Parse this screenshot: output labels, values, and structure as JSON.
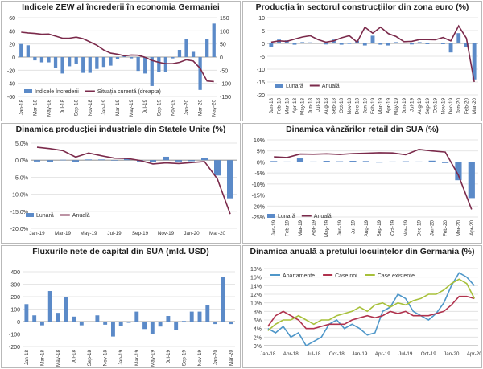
{
  "colors": {
    "bar": "#5b8ac8",
    "wine": "#7b2a4b",
    "teal": "#4f97c9",
    "red": "#b0324d",
    "green": "#a7c03a",
    "grid": "#dedede",
    "axis": "#444444"
  },
  "charts": [
    {
      "id": "zew",
      "title": "Indicele ZEW al încrederii în economia Germaniei",
      "type": "bar-line",
      "ylim": [
        -60,
        60
      ],
      "yticks": [
        -60,
        -40,
        -20,
        0,
        20,
        40,
        60
      ],
      "y2lim": [
        -150,
        150
      ],
      "y2ticks": [
        -150,
        -100,
        -50,
        0,
        50,
        100,
        150
      ],
      "categories": [
        "Jan-18",
        "Feb-18",
        "Mar-18",
        "Apr-18",
        "May-18",
        "Jun-18",
        "Jul-18",
        "Aug-18",
        "Sep-18",
        "Oct-18",
        "Nov-18",
        "Dec-18",
        "Jan-19",
        "Feb-19",
        "Mar-19",
        "Apr-19",
        "May-19",
        "Jun-19",
        "Jul-19",
        "Aug-19",
        "Sep-19",
        "Oct-19",
        "Nov-19",
        "Dec-19",
        "Jan-20",
        "Feb-20",
        "Mar-20",
        "Apr-20",
        "May-20"
      ],
      "xticks": [
        "Jan-18",
        "Mar-18",
        "May-18",
        "Jul-18",
        "Sep-18",
        "Nov-18",
        "Jan-19",
        "Mar-19",
        "May-19",
        "Jul-19",
        "Sep-19",
        "Nov-19",
        "Jan-20",
        "Mar-20",
        "May-20"
      ],
      "bars": {
        "name": "Indicele încrederii",
        "values": [
          20,
          18,
          -5,
          -8,
          -8,
          -17,
          -25,
          -14,
          -10,
          -24,
          -24,
          -18,
          -15,
          -13,
          -3,
          3,
          -2,
          -21,
          -25,
          -44,
          -23,
          -23,
          -2,
          11,
          27,
          8,
          -50,
          28,
          51
        ]
      },
      "line": {
        "name": "Situația curentă (dreapta)",
        "axis": "right",
        "values": [
          95,
          92,
          90,
          87,
          88,
          80,
          72,
          72,
          76,
          70,
          58,
          45,
          27,
          15,
          11,
          5,
          8,
          7,
          -1,
          -13,
          -20,
          -25,
          -25,
          -20,
          -10,
          -15,
          -43,
          -91,
          -93
        ]
      },
      "legend": [
        "Indicele încrederii",
        "Situația curentă (dreapta)"
      ]
    },
    {
      "id": "construction",
      "title": "Producția în sectorul construcțiilor din zona euro (%)",
      "type": "bar-line",
      "ylim": [
        -20,
        10
      ],
      "yticks": [
        -20,
        -15,
        -10,
        -5,
        0,
        5,
        10
      ],
      "categories": [
        "Jan-18",
        "Feb-18",
        "Mar-18",
        "Apr-18",
        "May-18",
        "Jun-18",
        "Jul-18",
        "Aug-18",
        "Sep-18",
        "Oct-18",
        "Nov-18",
        "Dec-18",
        "Jan-19",
        "Feb-19",
        "Mar-19",
        "Apr-19",
        "May-19",
        "Jun-19",
        "Jul-19",
        "Aug-19",
        "Sep-19",
        "Oct-19",
        "Nov-19",
        "Dec-19",
        "Jan-20",
        "Feb-20",
        "Mar-20"
      ],
      "xticks": [
        "Jan-18",
        "Feb-18",
        "Mar-18",
        "Apr-18",
        "May-18",
        "Jun-18",
        "Jul-18",
        "Aug-18",
        "Sep-18",
        "Oct-18",
        "Nov-18",
        "Dec-18",
        "Jan-19",
        "Feb-19",
        "Mar-19",
        "Apr-19",
        "May-19",
        "Jun-19",
        "Jul-19",
        "Aug-19",
        "Sep-19",
        "Oct-19",
        "Nov-19",
        "Dec-19",
        "Jan-20",
        "Feb-20",
        "Mar-20"
      ],
      "bars": {
        "name": "Lunară",
        "values": [
          -1.5,
          1.5,
          1.2,
          -0.5,
          0.5,
          0.4,
          0.3,
          -0.4,
          1.5,
          -0.5,
          -0.2,
          1.0,
          -0.8,
          3.0,
          -0.5,
          -0.8,
          0.5,
          0.3,
          -0.4,
          0.5,
          -0.3,
          0.2,
          -0.3,
          -3.5,
          4.0,
          -1.5,
          -14.0
        ]
      },
      "line": {
        "name": "Anuală",
        "values": [
          0.5,
          1.0,
          0.8,
          1.7,
          2.5,
          3.0,
          1.5,
          0.5,
          1.0,
          2.2,
          3.0,
          0.5,
          6.3,
          4.0,
          6.3,
          3.8,
          2.7,
          0.7,
          0.8,
          1.5,
          1.5,
          1.4,
          2.3,
          1.0,
          6.8,
          2.0,
          -15.0
        ]
      },
      "legend": [
        "Lunară",
        "Anuală"
      ]
    },
    {
      "id": "us-industrial",
      "title": "Dinamica producției industriale din Statele Unite (%)",
      "type": "bar-line",
      "ylim": [
        -20,
        5
      ],
      "yticks": [
        -20,
        -15,
        -10,
        -5,
        0,
        5
      ],
      "fmt": "pct-dec",
      "categories": [
        "Jan-19",
        "Feb-19",
        "Mar-19",
        "Apr-19",
        "May-19",
        "Jun-19",
        "Jul-19",
        "Aug-19",
        "Sep-19",
        "Oct-19",
        "Nov-19",
        "Dec-19",
        "Jan-20",
        "Feb-20",
        "Mar-20",
        "Apr-20"
      ],
      "xticks": [
        "Jan-19",
        "Mar-19",
        "May-19",
        "Jul-19",
        "Sep-19",
        "Nov-19",
        "Jan-20",
        "Mar-20"
      ],
      "bars": {
        "name": "Lunară",
        "values": [
          -0.4,
          -0.5,
          0.1,
          -0.6,
          0.2,
          0.2,
          -0.1,
          0.7,
          -0.4,
          -0.5,
          1.0,
          -0.4,
          -0.3,
          0.6,
          -4.5,
          -11.2
        ]
      },
      "line": {
        "name": "Anuală",
        "values": [
          3.8,
          3.4,
          2.8,
          0.9,
          2.1,
          1.3,
          0.6,
          0.5,
          -0.1,
          -1.1,
          -0.8,
          -1.0,
          -0.7,
          -0.4,
          -5.5,
          -15.8
        ]
      },
      "legend": [
        "Lunară",
        "Anuală"
      ]
    },
    {
      "id": "us-retail",
      "title": "Dinamica vânzărilor retail din SUA (%)",
      "type": "bar-line",
      "ylim": [
        -25,
        10
      ],
      "yticks": [
        -25,
        -20,
        -15,
        -10,
        -5,
        0,
        5,
        10
      ],
      "fmt": "pct",
      "categories": [
        "Jan-19",
        "Feb-19",
        "Mar-19",
        "Apr-19",
        "May-19",
        "Jun-19",
        "Jul-19",
        "Aug-19",
        "Sep-19",
        "Oct-19",
        "Nov-19",
        "Dec-19",
        "Jan-20",
        "Feb-20",
        "Mar-20",
        "Apr-20"
      ],
      "xticks": [
        "Jan-19",
        "Feb-19",
        "Mar-19",
        "Apr-19",
        "May-19",
        "Jun-19",
        "Jul-19",
        "Aug-19",
        "Sep-19",
        "Oct-19",
        "Nov-19",
        "Dec-19",
        "Jan-20",
        "Feb-20",
        "Mar-20",
        "Apr-20"
      ],
      "bars": {
        "name": "Lunară",
        "values": [
          0.4,
          0.2,
          1.6,
          0.2,
          0.5,
          0.3,
          0.5,
          0.4,
          -0.3,
          0.2,
          0.3,
          0.2,
          0.6,
          -0.5,
          -8.3,
          -16.4
        ]
      },
      "line": {
        "name": "Anuală",
        "values": [
          2.3,
          2.0,
          3.6,
          3.5,
          3.7,
          3.4,
          3.8,
          4.0,
          4.2,
          4.1,
          3.3,
          5.7,
          5.0,
          4.5,
          -6.0,
          -21.5
        ]
      },
      "legend": [
        "Lunară",
        "Anuală"
      ]
    },
    {
      "id": "us-capital",
      "title": "Fluxurile nete de capital din SUA (mld. USD)",
      "type": "bar",
      "ylim": [
        -200,
        400
      ],
      "yticks": [
        -200,
        -100,
        0,
        100,
        200,
        300,
        400
      ],
      "categories": [
        "Jan-18",
        "Feb-18",
        "Mar-18",
        "Apr-18",
        "May-18",
        "Jun-18",
        "Jul-18",
        "Aug-18",
        "Sep-18",
        "Oct-18",
        "Nov-18",
        "Dec-18",
        "Jan-19",
        "Feb-19",
        "Mar-19",
        "Apr-19",
        "May-19",
        "Jun-19",
        "Jul-19",
        "Aug-19",
        "Sep-19",
        "Oct-19",
        "Nov-19",
        "Dec-19",
        "Jan-20",
        "Feb-20",
        "Mar-20"
      ],
      "xticks": [
        "Jan-18",
        "Mar-18",
        "May-18",
        "Jul-18",
        "Sep-18",
        "Nov-18",
        "Jan-19",
        "Mar-19",
        "May-19",
        "Jul-19",
        "Sep-19",
        "Nov-19",
        "Jan-20",
        "Mar-20"
      ],
      "bars": {
        "name": "Fluxuri nete",
        "values": [
          140,
          50,
          -30,
          245,
          70,
          200,
          40,
          -30,
          -5,
          50,
          -25,
          -120,
          -35,
          -10,
          80,
          -60,
          -100,
          -40,
          45,
          -70,
          5,
          80,
          80,
          130,
          -20,
          360,
          -20
        ]
      }
    },
    {
      "id": "germany-housing",
      "title": "Dinamica anuală a prețului locuințelor din Germania (%)",
      "type": "lines",
      "ylim": [
        0,
        18
      ],
      "yticks": [
        0,
        2,
        4,
        6,
        8,
        10,
        12,
        14,
        16,
        18
      ],
      "fmt": "pct",
      "categories": [
        "Jan-18",
        "Feb-18",
        "Mar-18",
        "Apr-18",
        "May-18",
        "Jun-18",
        "Jul-18",
        "Aug-18",
        "Sep-18",
        "Oct-18",
        "Nov-18",
        "Dec-18",
        "Jan-19",
        "Feb-19",
        "Mar-19",
        "Apr-19",
        "May-19",
        "Jun-19",
        "Jul-19",
        "Aug-19",
        "Sep-19",
        "Oct-19",
        "Nov-19",
        "Dec-19",
        "Jan-20",
        "Feb-20",
        "Mar-20",
        "Apr-20"
      ],
      "xticks": [
        "Jan-18",
        "Apr-18",
        "Jul-18",
        "Oct-18",
        "Jan-19",
        "Apr-19",
        "Jul-19",
        "Oct-19",
        "Jan-20",
        "Apr-20"
      ],
      "series": [
        {
          "name": "Apartamente",
          "color": "teal",
          "values": [
            4,
            3,
            4.5,
            2,
            3,
            0,
            1,
            2,
            5,
            6,
            4,
            5,
            4,
            2.5,
            3,
            8,
            9,
            12,
            11,
            8,
            7,
            6,
            7.5,
            10,
            14,
            17,
            16,
            14
          ]
        },
        {
          "name": "Case noi",
          "color": "red",
          "values": [
            4.5,
            7,
            8,
            7,
            6,
            4,
            4,
            4.5,
            5,
            5,
            5,
            6,
            6.5,
            7,
            6.5,
            7,
            8,
            7.5,
            8,
            7,
            7,
            7,
            7.5,
            8,
            9.5,
            11.5,
            11.5,
            11
          ]
        },
        {
          "name": "Case existente",
          "color": "green",
          "values": [
            3.5,
            5,
            6,
            6,
            7,
            6,
            5,
            6,
            6,
            7,
            7.5,
            8,
            9,
            8,
            9.5,
            10,
            9,
            10,
            9.5,
            10.5,
            11,
            12,
            12,
            13,
            14.5,
            15.5,
            14.5,
            11
          ]
        }
      ],
      "legend": [
        "Apartamente",
        "Case noi",
        "Case existente"
      ]
    }
  ]
}
